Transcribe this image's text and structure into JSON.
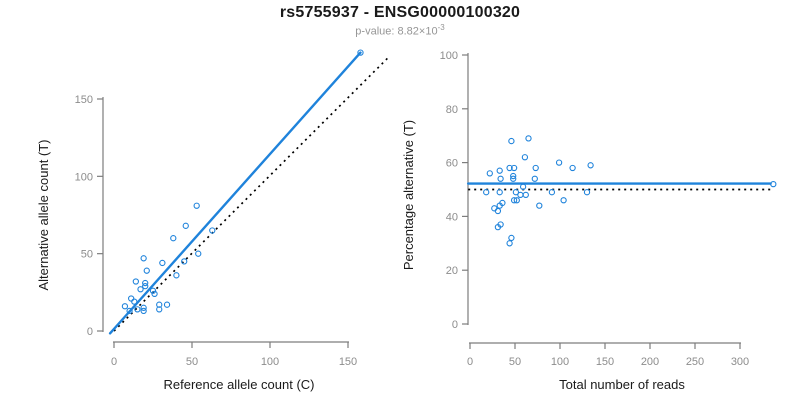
{
  "header": {
    "title": "rs5755937 - ENSG00000100320",
    "subtitle_base": "p-value: 8.82×10",
    "subtitle_exponent": "-3"
  },
  "style": {
    "accent_blue": "#1f83db",
    "dotted_line_color": "#000000",
    "axis_color": "#7d7d7d",
    "tick_label_color": "#8c8c8c",
    "axis_title_color": "#1a1a1a"
  },
  "chart_data": [
    {
      "type": "scatter",
      "name": "allele-count-scatter",
      "xlabel": "Reference allele count (C)",
      "ylabel": "Alternative allele count (T)",
      "x_ticks": [
        0,
        50,
        100,
        150
      ],
      "y_ticks": [
        0,
        50,
        100,
        150
      ],
      "xlim": [
        -7,
        168
      ],
      "ylim": [
        -7,
        192
      ],
      "points": [
        [
          158,
          180
        ],
        [
          53,
          81
        ],
        [
          46,
          68
        ],
        [
          63,
          65
        ],
        [
          38,
          60
        ],
        [
          54,
          50
        ],
        [
          45,
          45
        ],
        [
          19,
          47
        ],
        [
          31,
          44
        ],
        [
          21,
          39
        ],
        [
          40,
          36
        ],
        [
          14,
          32
        ],
        [
          20,
          31
        ],
        [
          20,
          29
        ],
        [
          17,
          27
        ],
        [
          25,
          26
        ],
        [
          26,
          24
        ],
        [
          34,
          17
        ],
        [
          29,
          17
        ],
        [
          29,
          14
        ],
        [
          11,
          21
        ],
        [
          13,
          19
        ],
        [
          7,
          16
        ],
        [
          10,
          13
        ],
        [
          15,
          14
        ],
        [
          19,
          15
        ],
        [
          19,
          13
        ]
      ],
      "lines": [
        {
          "name": "identity-line",
          "style": "dotted",
          "color": "#000000",
          "x1": 0,
          "y1": 0,
          "x2": 176,
          "y2": 177
        },
        {
          "name": "regression-line",
          "style": "solid",
          "color": "#1f83db",
          "x1": -2.5,
          "y1": -1.5,
          "x2": 158,
          "y2": 180
        }
      ]
    },
    {
      "type": "scatter",
      "name": "percentage-vs-reads-scatter",
      "xlabel": "Total number of reads",
      "ylabel": "Percentage alternative (T)",
      "x_ticks": [
        0,
        50,
        100,
        150,
        200,
        250,
        300
      ],
      "y_ticks": [
        0,
        20,
        40,
        60,
        80,
        100
      ],
      "xlim": [
        -2,
        340
      ],
      "ylim": [
        0,
        100
      ],
      "points": [
        [
          337,
          52
        ],
        [
          65,
          69
        ],
        [
          46,
          68
        ],
        [
          61,
          62
        ],
        [
          99,
          60
        ],
        [
          134,
          59
        ],
        [
          114,
          58
        ],
        [
          44,
          58
        ],
        [
          49,
          58
        ],
        [
          73,
          58
        ],
        [
          33,
          57
        ],
        [
          22,
          56
        ],
        [
          48,
          55
        ],
        [
          34,
          54
        ],
        [
          48,
          54
        ],
        [
          72,
          54
        ],
        [
          59,
          51
        ],
        [
          18,
          49
        ],
        [
          33,
          49
        ],
        [
          91,
          49
        ],
        [
          130,
          49
        ],
        [
          51,
          49
        ],
        [
          56,
          48
        ],
        [
          62,
          48
        ],
        [
          49,
          46
        ],
        [
          52,
          46
        ],
        [
          104,
          46
        ],
        [
          36,
          45
        ],
        [
          77,
          44
        ],
        [
          33,
          44
        ],
        [
          27,
          43
        ],
        [
          31,
          42
        ],
        [
          34,
          37
        ],
        [
          31,
          36
        ],
        [
          46,
          32
        ],
        [
          44,
          30
        ]
      ],
      "lines": [
        {
          "name": "null-line",
          "style": "dotted",
          "color": "#000000",
          "x1": -2,
          "y1": 50,
          "x2": 334,
          "y2": 50
        },
        {
          "name": "mean-line",
          "style": "solid",
          "color": "#1f83db",
          "x1": -2,
          "y1": 52.2,
          "x2": 334,
          "y2": 52.2
        }
      ]
    }
  ]
}
